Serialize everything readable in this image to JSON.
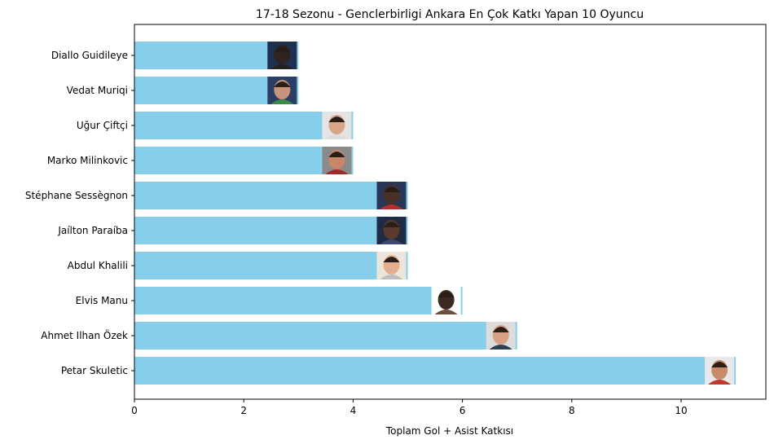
{
  "chart_data": {
    "type": "bar",
    "orientation": "horizontal",
    "title": "17-18 Sezonu - Genclerbirligi Ankara En Çok Katkı Yapan 10 Oyuncu",
    "xlabel": "Toplam Gol + Asist Katkısı",
    "ylabel": "",
    "categories": [
      "Petar Skuletic",
      "Ahmet Ilhan Özek",
      "Elvis Manu",
      "Abdul Khalili",
      "Jaílton Paraíba",
      "Stéphane Sessègnon",
      "Marko Milinkovic",
      "Uğur Çiftçi",
      "Vedat Muriqi",
      "Diallo Guidileye"
    ],
    "values": [
      11,
      7,
      6,
      5,
      5,
      5,
      4,
      4,
      3,
      3
    ],
    "xlim": [
      0,
      11.55
    ],
    "xticks": [
      0,
      2,
      4,
      6,
      8,
      10
    ],
    "grid": false,
    "bar_color": "#87ceeb",
    "player_photo": "face-photo-icon"
  }
}
